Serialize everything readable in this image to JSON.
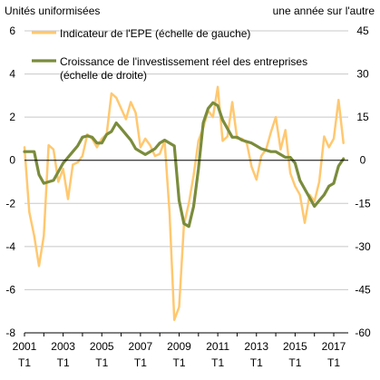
{
  "chart_data": {
    "type": "line",
    "left_axis_label": "Unités uniformisées",
    "right_axis_label": "une année sur l'autre",
    "left_axis": {
      "range": [
        -8,
        6
      ],
      "ticks": [
        "6",
        "4",
        "2",
        "0",
        "-2",
        "-4",
        "-6",
        "-8"
      ],
      "tick_values": [
        6,
        4,
        2,
        0,
        -2,
        -4,
        -6,
        -8
      ]
    },
    "right_axis": {
      "range": [
        -60,
        45
      ],
      "ticks": [
        "45",
        "30",
        "15",
        "0",
        "-15",
        "-30",
        "-45",
        "-60"
      ],
      "tick_values": [
        45,
        30,
        15,
        0,
        -15,
        -30,
        -45,
        -60
      ]
    },
    "x_axis": {
      "range": [
        2001.0,
        2017.75
      ],
      "ticks": [
        {
          "year": "2001",
          "quarter": "T1",
          "x": 2001.0
        },
        {
          "year": "2003",
          "quarter": "T1",
          "x": 2003.0
        },
        {
          "year": "2005",
          "quarter": "T1",
          "x": 2005.0
        },
        {
          "year": "2007",
          "quarter": "T1",
          "x": 2007.0
        },
        {
          "year": "2009",
          "quarter": "T1",
          "x": 2009.0
        },
        {
          "year": "2011",
          "quarter": "T1",
          "x": 2011.0
        },
        {
          "year": "2013",
          "quarter": "T1",
          "x": 2013.0
        },
        {
          "year": "2015",
          "quarter": "T1",
          "x": 2015.0
        },
        {
          "year": "2017",
          "quarter": "T1",
          "x": 2017.0
        }
      ]
    },
    "grid": "horizontal",
    "legend_placement": "top-left",
    "series": [
      {
        "name": "Indicateur de l'EPE (échelle de gauche)",
        "axis": "left",
        "color": "#FFC870",
        "x": [
          2001.0,
          2001.25,
          2001.5,
          2001.75,
          2002.0,
          2002.25,
          2002.5,
          2002.75,
          2003.0,
          2003.25,
          2003.5,
          2003.75,
          2004.0,
          2004.25,
          2004.5,
          2004.75,
          2005.0,
          2005.25,
          2005.5,
          2005.75,
          2006.0,
          2006.25,
          2006.5,
          2006.75,
          2007.0,
          2007.25,
          2007.5,
          2007.75,
          2008.0,
          2008.25,
          2008.5,
          2008.75,
          2009.0,
          2009.25,
          2009.5,
          2009.75,
          2010.0,
          2010.25,
          2010.5,
          2010.75,
          2011.0,
          2011.25,
          2011.5,
          2011.75,
          2012.0,
          2012.25,
          2012.5,
          2012.75,
          2013.0,
          2013.25,
          2013.5,
          2013.75,
          2014.0,
          2014.25,
          2014.5,
          2014.75,
          2015.0,
          2015.25,
          2015.5,
          2015.75,
          2016.0,
          2016.25,
          2016.5,
          2016.75,
          2017.0,
          2017.25,
          2017.5
        ],
        "values": [
          0.6,
          -2.4,
          -3.5,
          -4.9,
          -3.5,
          0.7,
          0.5,
          -1.0,
          -0.4,
          -1.8,
          -0.2,
          -0.1,
          0.2,
          1.2,
          1.0,
          0.6,
          1.0,
          1.2,
          3.1,
          2.9,
          2.4,
          1.9,
          2.7,
          2.2,
          0.6,
          1.0,
          0.7,
          0.2,
          0.3,
          0.9,
          -2.4,
          -7.4,
          -6.8,
          -3.0,
          -2.0,
          -0.7,
          0.9,
          1.5,
          2.3,
          2.0,
          3.4,
          0.9,
          1.1,
          2.7,
          1.0,
          1.0,
          0.8,
          -0.3,
          -0.9,
          0.2,
          0.5,
          1.3,
          2.0,
          0.5,
          1.4,
          -0.6,
          -1.2,
          -1.6,
          -2.9,
          -1.6,
          -1.9,
          -1.0,
          1.1,
          0.6,
          1.0,
          2.8,
          0.8
        ]
      },
      {
        "name": "Croissance de l'investissement réel des entreprises (échelle de droite)",
        "axis": "right",
        "color": "#7A8C3C",
        "x": [
          2001.0,
          2001.25,
          2001.5,
          2001.75,
          2002.0,
          2002.25,
          2002.5,
          2002.75,
          2003.0,
          2003.25,
          2003.5,
          2003.75,
          2004.0,
          2004.25,
          2004.5,
          2004.75,
          2005.0,
          2005.25,
          2005.5,
          2005.75,
          2006.0,
          2006.25,
          2006.5,
          2006.75,
          2007.0,
          2007.25,
          2007.5,
          2007.75,
          2008.0,
          2008.25,
          2008.5,
          2008.75,
          2009.0,
          2009.25,
          2009.5,
          2009.75,
          2010.0,
          2010.25,
          2010.5,
          2010.75,
          2011.0,
          2011.25,
          2011.5,
          2011.75,
          2012.0,
          2012.25,
          2012.5,
          2012.75,
          2013.0,
          2013.25,
          2013.5,
          2013.75,
          2014.0,
          2014.25,
          2014.5,
          2014.75,
          2015.0,
          2015.25,
          2015.5,
          2015.75,
          2016.0,
          2016.25,
          2016.5,
          2016.75,
          2017.0,
          2017.25,
          2017.5
        ],
        "values": [
          3.0,
          3.0,
          3.0,
          -5.0,
          -8.0,
          -7.5,
          -7.0,
          -4.0,
          -1.0,
          1.0,
          3.0,
          5.0,
          8.0,
          8.5,
          8.0,
          6.0,
          6.0,
          9.0,
          10.0,
          13.0,
          11.0,
          9.0,
          7.0,
          4.0,
          3.0,
          2.0,
          3.0,
          4.0,
          6.0,
          7.0,
          6.0,
          5.0,
          -14.0,
          -22.0,
          -23.0,
          -16.0,
          -3.0,
          13.0,
          18.0,
          20.0,
          19.0,
          14.0,
          11.0,
          8.0,
          8.0,
          7.0,
          6.5,
          6.0,
          5.0,
          4.0,
          3.5,
          3.0,
          3.0,
          2.0,
          1.0,
          1.0,
          -1.0,
          -7.0,
          -10.0,
          -13.0,
          -16.0,
          -14.0,
          -12.0,
          -9.0,
          -8.0,
          -2.0,
          0.5
        ]
      }
    ]
  }
}
